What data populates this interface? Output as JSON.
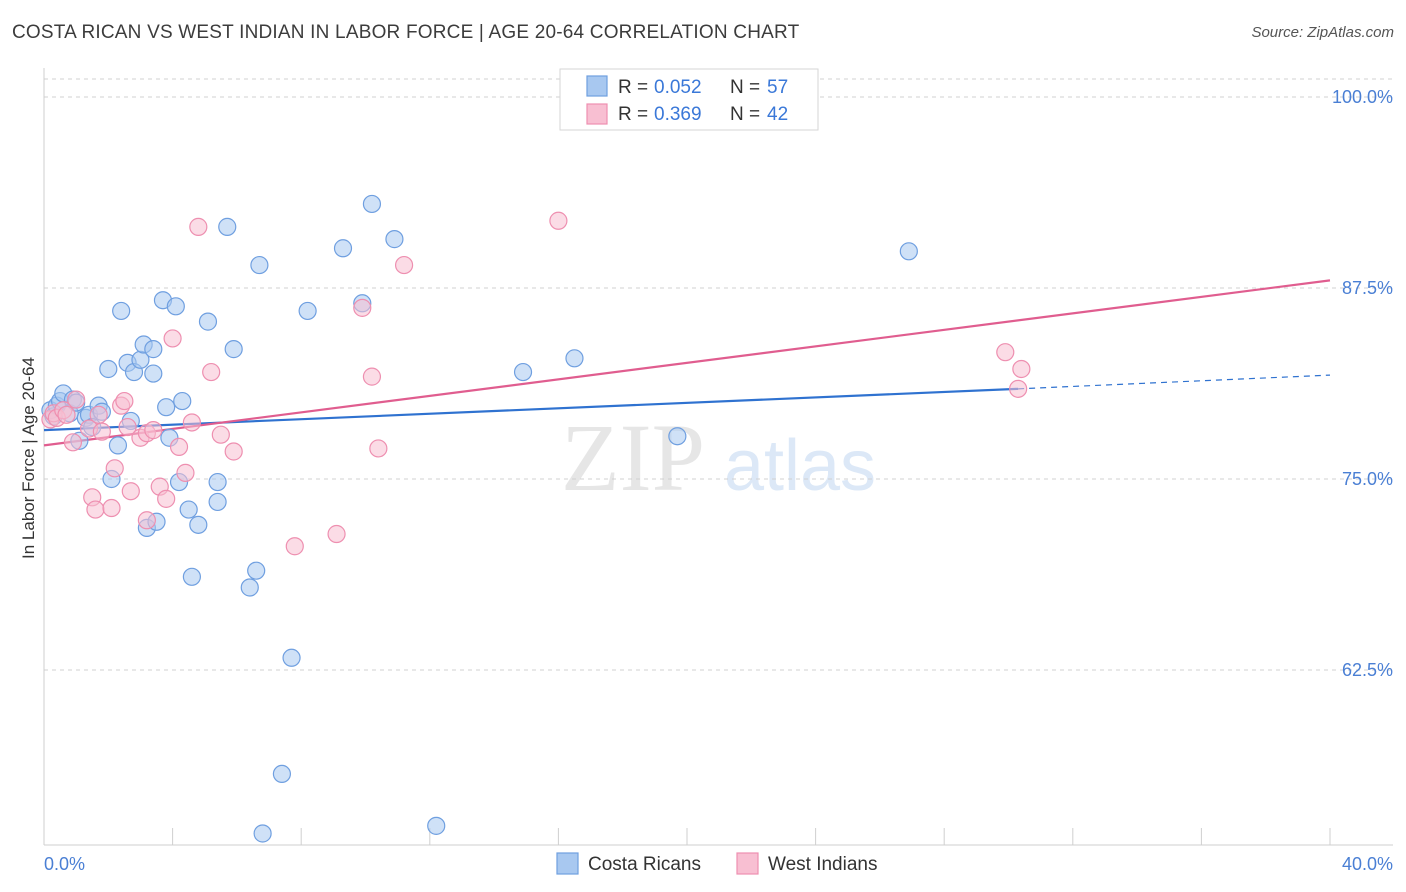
{
  "title": "COSTA RICAN VS WEST INDIAN IN LABOR FORCE | AGE 20-64 CORRELATION CHART",
  "source": "Source: ZipAtlas.com",
  "watermark": {
    "zip": "ZIP",
    "atlas": "atlas"
  },
  "colors": {
    "blue_fill": "#a8c8f0",
    "blue_stroke": "#6f9fe0",
    "blue_line": "#2f72d0",
    "pink_fill": "#f8bfd2",
    "pink_stroke": "#ee8fb0",
    "pink_line": "#e05d8f",
    "tick_label": "#4a7fd4",
    "grid": "#d0d0d0"
  },
  "legend": {
    "rows": [
      {
        "r_label": "R =",
        "r_value": "0.052",
        "n_label": "N =",
        "n_value": "57",
        "series": "blue"
      },
      {
        "r_label": "R =",
        "r_value": "0.369",
        "n_label": "N =",
        "n_value": "42",
        "series": "pink"
      }
    ]
  },
  "chart_data": {
    "type": "scatter",
    "title": "COSTA RICAN VS WEST INDIAN IN LABOR FORCE | AGE 20-64 CORRELATION CHART",
    "xlabel": "",
    "ylabel": "In Labor Force | Age 20-64",
    "xlim": [
      0,
      40
    ],
    "ylim": [
      51,
      102
    ],
    "x_tick_labels": [
      "0.0%",
      "40.0%"
    ],
    "y_ticks": [
      62.5,
      75.0,
      87.5,
      100.0
    ],
    "y_tick_labels": [
      "62.5%",
      "75.0%",
      "87.5%",
      "100.0%"
    ],
    "grid": true,
    "legend_position": "top-center",
    "series": [
      {
        "name": "Costa Ricans",
        "color": "blue",
        "R": 0.052,
        "N": 57,
        "trend": {
          "x0": 0,
          "y0": 78.2,
          "x1": 30.3,
          "y1": 80.9,
          "dash_x1": 40,
          "dash_y1": 81.8
        },
        "points": [
          [
            0.2,
            79.5
          ],
          [
            0.3,
            79.1
          ],
          [
            0.4,
            79.8
          ],
          [
            0.5,
            80.1
          ],
          [
            0.6,
            80.6
          ],
          [
            0.8,
            79.3
          ],
          [
            0.9,
            80.2
          ],
          [
            1.0,
            80.0
          ],
          [
            1.1,
            77.5
          ],
          [
            1.3,
            79.0
          ],
          [
            1.4,
            79.2
          ],
          [
            1.5,
            78.4
          ],
          [
            1.7,
            79.8
          ],
          [
            1.8,
            79.4
          ],
          [
            2.0,
            82.2
          ],
          [
            2.1,
            75.0
          ],
          [
            2.3,
            77.2
          ],
          [
            2.4,
            86.0
          ],
          [
            2.6,
            82.6
          ],
          [
            2.7,
            78.8
          ],
          [
            2.8,
            82.0
          ],
          [
            3.0,
            82.8
          ],
          [
            3.1,
            83.8
          ],
          [
            3.2,
            71.8
          ],
          [
            3.4,
            81.9
          ],
          [
            3.4,
            83.5
          ],
          [
            3.5,
            72.2
          ],
          [
            3.7,
            86.7
          ],
          [
            3.8,
            79.7
          ],
          [
            3.9,
            77.7
          ],
          [
            4.1,
            86.3
          ],
          [
            4.2,
            74.8
          ],
          [
            4.3,
            80.1
          ],
          [
            4.5,
            73.0
          ],
          [
            4.6,
            68.6
          ],
          [
            4.8,
            72.0
          ],
          [
            5.1,
            85.3
          ],
          [
            5.4,
            74.8
          ],
          [
            5.4,
            73.5
          ],
          [
            5.7,
            91.5
          ],
          [
            5.9,
            83.5
          ],
          [
            6.4,
            67.9
          ],
          [
            6.6,
            69.0
          ],
          [
            6.7,
            89.0
          ],
          [
            6.8,
            51.8
          ],
          [
            7.4,
            55.7
          ],
          [
            7.7,
            63.3
          ],
          [
            8.2,
            86.0
          ],
          [
            9.3,
            90.1
          ],
          [
            9.9,
            86.5
          ],
          [
            10.2,
            93.0
          ],
          [
            10.9,
            90.7
          ],
          [
            12.2,
            52.3
          ],
          [
            14.9,
            82.0
          ],
          [
            16.5,
            82.9
          ],
          [
            19.7,
            77.8
          ],
          [
            26.9,
            89.9
          ]
        ]
      },
      {
        "name": "West Indians",
        "color": "pink",
        "R": 0.369,
        "N": 42,
        "trend": {
          "x0": 0,
          "y0": 77.2,
          "x1": 40,
          "y1": 88.0
        },
        "points": [
          [
            0.2,
            78.9
          ],
          [
            0.3,
            79.3
          ],
          [
            0.4,
            79.0
          ],
          [
            0.6,
            79.5
          ],
          [
            0.7,
            79.2
          ],
          [
            0.9,
            77.4
          ],
          [
            1.0,
            80.2
          ],
          [
            1.4,
            78.3
          ],
          [
            1.5,
            73.8
          ],
          [
            1.6,
            73.0
          ],
          [
            1.7,
            79.2
          ],
          [
            1.8,
            78.1
          ],
          [
            2.1,
            73.1
          ],
          [
            2.2,
            75.7
          ],
          [
            2.4,
            79.8
          ],
          [
            2.5,
            80.1
          ],
          [
            2.6,
            78.4
          ],
          [
            2.7,
            74.2
          ],
          [
            3.0,
            77.7
          ],
          [
            3.2,
            78.0
          ],
          [
            3.2,
            72.3
          ],
          [
            3.4,
            78.2
          ],
          [
            3.6,
            74.5
          ],
          [
            3.8,
            73.7
          ],
          [
            4.0,
            84.2
          ],
          [
            4.2,
            77.1
          ],
          [
            4.4,
            75.4
          ],
          [
            4.6,
            78.7
          ],
          [
            4.8,
            91.5
          ],
          [
            5.2,
            82.0
          ],
          [
            5.5,
            77.9
          ],
          [
            5.9,
            76.8
          ],
          [
            7.8,
            70.6
          ],
          [
            9.1,
            71.4
          ],
          [
            9.9,
            86.2
          ],
          [
            10.2,
            81.7
          ],
          [
            10.4,
            77.0
          ],
          [
            11.2,
            89.0
          ],
          [
            16.0,
            91.9
          ],
          [
            29.9,
            83.3
          ],
          [
            30.4,
            82.2
          ],
          [
            30.3,
            80.9
          ]
        ]
      }
    ]
  },
  "bottom_legend": {
    "items": [
      "Costa Ricans",
      "West Indians"
    ]
  }
}
